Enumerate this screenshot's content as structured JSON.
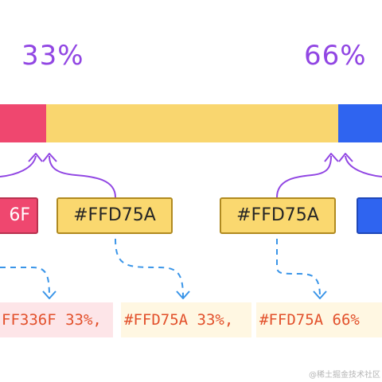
{
  "percent_labels": {
    "first": "33%",
    "second": "66%"
  },
  "colors": {
    "pink": "#EF476F",
    "yellow": "#FFD75A",
    "blue": "#2F64F0",
    "purple": "#9146E3",
    "dashed_blue": "#3A95E8",
    "code_text": "#E2502B"
  },
  "boxes": {
    "left_partial": "6F",
    "yellow_left": "#FFD75A",
    "yellow_right": "#FFD75A"
  },
  "code_segments": {
    "pink": "FF336F 33%,",
    "yellow_left": "#FFD75A 33%,",
    "yellow_right": "#FFD75A 66%"
  },
  "watermark": "@稀土掘金技术社区"
}
